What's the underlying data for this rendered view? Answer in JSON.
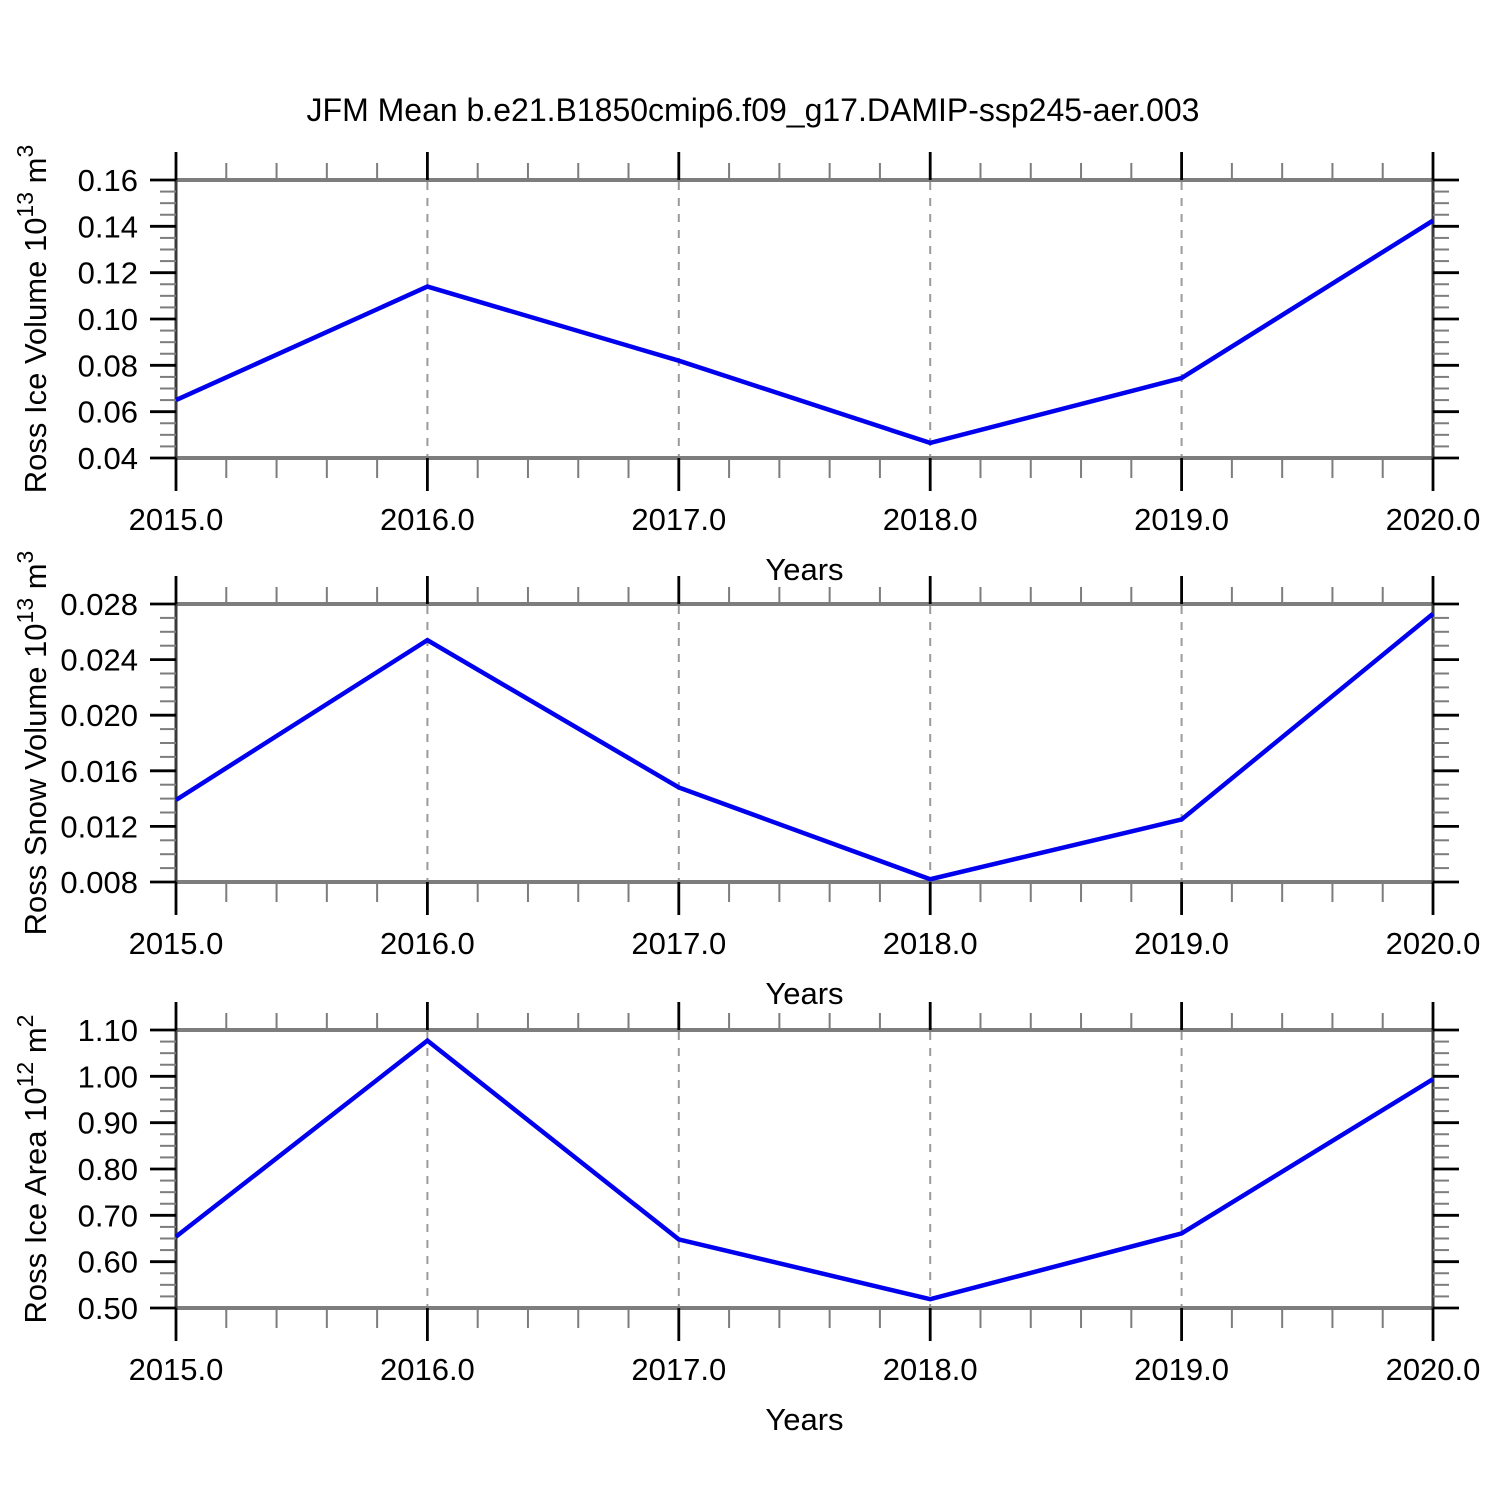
{
  "title": "JFM Mean b.e21.B1850cmip6.f09_g17.DAMIP-ssp245-aer.003",
  "colors": {
    "line": "#0000EE",
    "grid": "#9B9B9B",
    "frame_horizontal": "#7D7D7D",
    "frame_vertical": "#3A3A3A",
    "major_tick": "#000000",
    "minor_tick": "#7D7D7D"
  },
  "chart_data": [
    {
      "type": "line",
      "name": "ross-ice-volume",
      "title": "",
      "xlabel": "Years",
      "ylabel": "Ross Ice Volume 10^13 m^3",
      "ylabel_parts": [
        {
          "t": "Ross Ice Volume 10"
        },
        {
          "t": "13",
          "sup": true
        },
        {
          "t": " m"
        },
        {
          "t": "3",
          "sup": true
        }
      ],
      "x": [
        2015.0,
        2016.0,
        2017.0,
        2018.0,
        2019.0,
        2020.0
      ],
      "values": [
        0.065,
        0.114,
        0.082,
        0.0465,
        0.0745,
        0.1425
      ],
      "xlim": [
        2015.0,
        2020.0
      ],
      "ylim": [
        0.04,
        0.16
      ],
      "xticks": {
        "major": 1.0,
        "minor": 0.2,
        "labels": [
          "2015.0",
          "2016.0",
          "2017.0",
          "2018.0",
          "2019.0",
          "2020.0"
        ]
      },
      "yticks": {
        "major": 0.02,
        "minor": 0.005,
        "labels": [
          "0.04",
          "0.06",
          "0.08",
          "0.10",
          "0.12",
          "0.14",
          "0.16"
        ]
      },
      "grid_x": [
        2016.0,
        2017.0,
        2018.0,
        2019.0
      ],
      "grid_style": "vertical-dashed",
      "line_color": "#0000EE"
    },
    {
      "type": "line",
      "name": "ross-snow-volume",
      "title": "",
      "xlabel": "Years",
      "ylabel": "Ross Snow Volume 10^13 m^3",
      "ylabel_parts": [
        {
          "t": "Ross Snow Volume 10"
        },
        {
          "t": "13",
          "sup": true
        },
        {
          "t": " m"
        },
        {
          "t": "3",
          "sup": true
        }
      ],
      "x": [
        2015.0,
        2016.0,
        2017.0,
        2018.0,
        2019.0,
        2020.0
      ],
      "values": [
        0.0139,
        0.0254,
        0.0148,
        0.0082,
        0.0125,
        0.0273
      ],
      "xlim": [
        2015.0,
        2020.0
      ],
      "ylim": [
        0.008,
        0.028
      ],
      "xticks": {
        "major": 1.0,
        "minor": 0.2,
        "labels": [
          "2015.0",
          "2016.0",
          "2017.0",
          "2018.0",
          "2019.0",
          "2020.0"
        ]
      },
      "yticks": {
        "major": 0.004,
        "minor": 0.001,
        "labels": [
          "0.008",
          "0.012",
          "0.016",
          "0.020",
          "0.024",
          "0.028"
        ]
      },
      "grid_x": [
        2016.0,
        2017.0,
        2018.0,
        2019.0
      ],
      "grid_style": "vertical-dashed",
      "line_color": "#0000EE"
    },
    {
      "type": "line",
      "name": "ross-ice-area",
      "title": "",
      "xlabel": "Years",
      "ylabel": "Ross Ice Area 10^12 m^2",
      "ylabel_parts": [
        {
          "t": "Ross Ice Area 10"
        },
        {
          "t": "12",
          "sup": true
        },
        {
          "t": " m"
        },
        {
          "t": "2",
          "sup": true
        }
      ],
      "x": [
        2015.0,
        2016.0,
        2017.0,
        2018.0,
        2019.0,
        2020.0
      ],
      "values": [
        0.654,
        1.077,
        0.648,
        0.519,
        0.661,
        0.994
      ],
      "xlim": [
        2015.0,
        2020.0
      ],
      "ylim": [
        0.5,
        1.1
      ],
      "xticks": {
        "major": 1.0,
        "minor": 0.2,
        "labels": [
          "2015.0",
          "2016.0",
          "2017.0",
          "2018.0",
          "2019.0",
          "2020.0"
        ]
      },
      "yticks": {
        "major": 0.1,
        "minor": 0.025,
        "labels": [
          "0.50",
          "0.60",
          "0.70",
          "0.80",
          "0.90",
          "1.00",
          "1.10"
        ]
      },
      "grid_x": [
        2016.0,
        2017.0,
        2018.0,
        2019.0
      ],
      "grid_style": "vertical-dashed",
      "line_color": "#0000EE"
    }
  ]
}
